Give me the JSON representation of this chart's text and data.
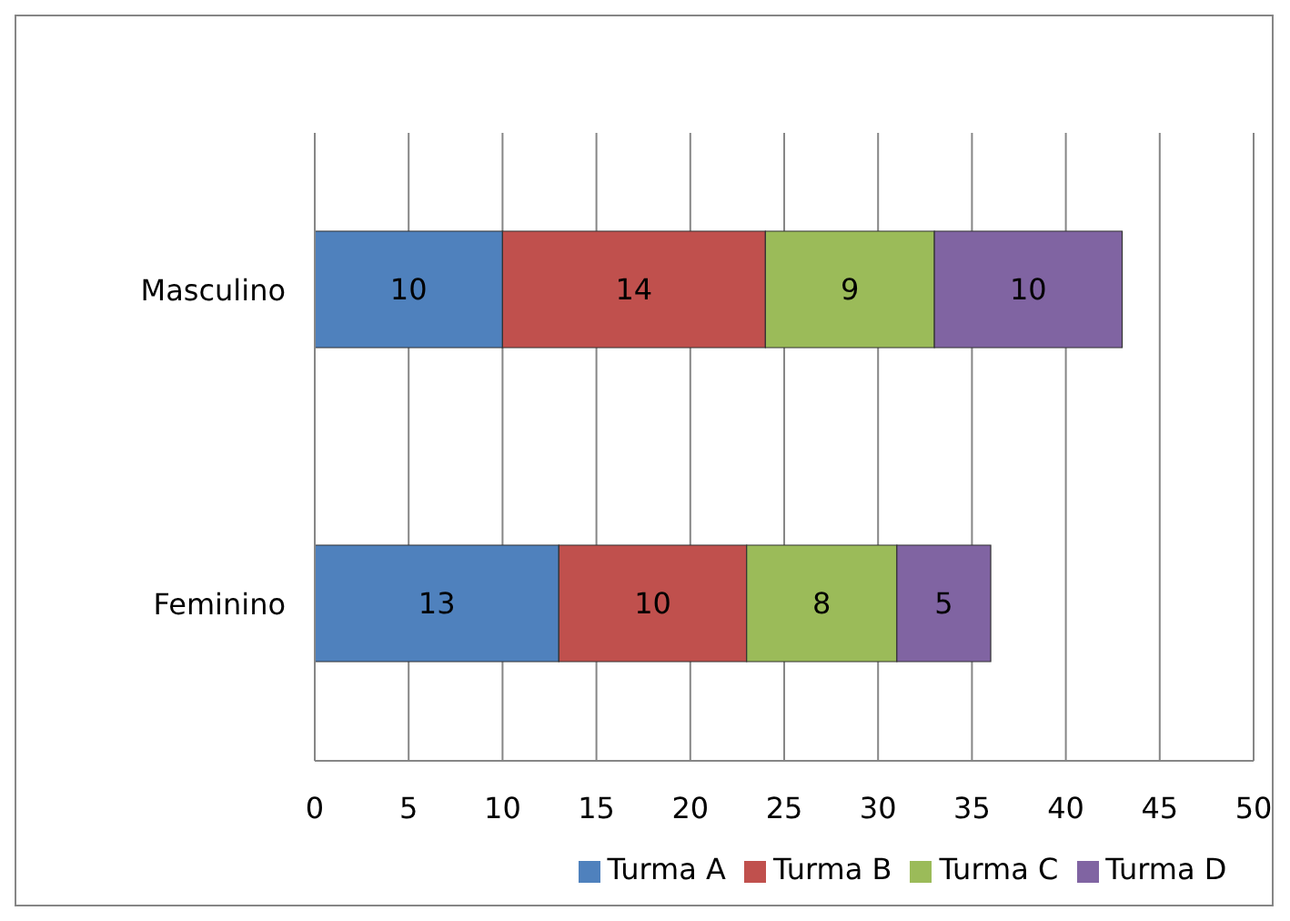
{
  "chart_data": {
    "type": "bar",
    "orientation": "horizontal",
    "stacked": true,
    "categories": [
      "Masculino",
      "Feminino"
    ],
    "series": [
      {
        "name": "Turma A",
        "color": "#4f81bd",
        "values": [
          10,
          13
        ]
      },
      {
        "name": "Turma B",
        "color": "#c0504d",
        "values": [
          14,
          10
        ]
      },
      {
        "name": "Turma C",
        "color": "#9bbb59",
        "values": [
          9,
          8
        ]
      },
      {
        "name": "Turma D",
        "color": "#8064a2",
        "values": [
          10,
          5
        ]
      }
    ],
    "xlim": [
      0,
      50
    ],
    "xticks": [
      0,
      5,
      10,
      15,
      20,
      25,
      30,
      35,
      40,
      45,
      50
    ],
    "grid": "x",
    "legend": "bottom",
    "data_labels": true
  }
}
